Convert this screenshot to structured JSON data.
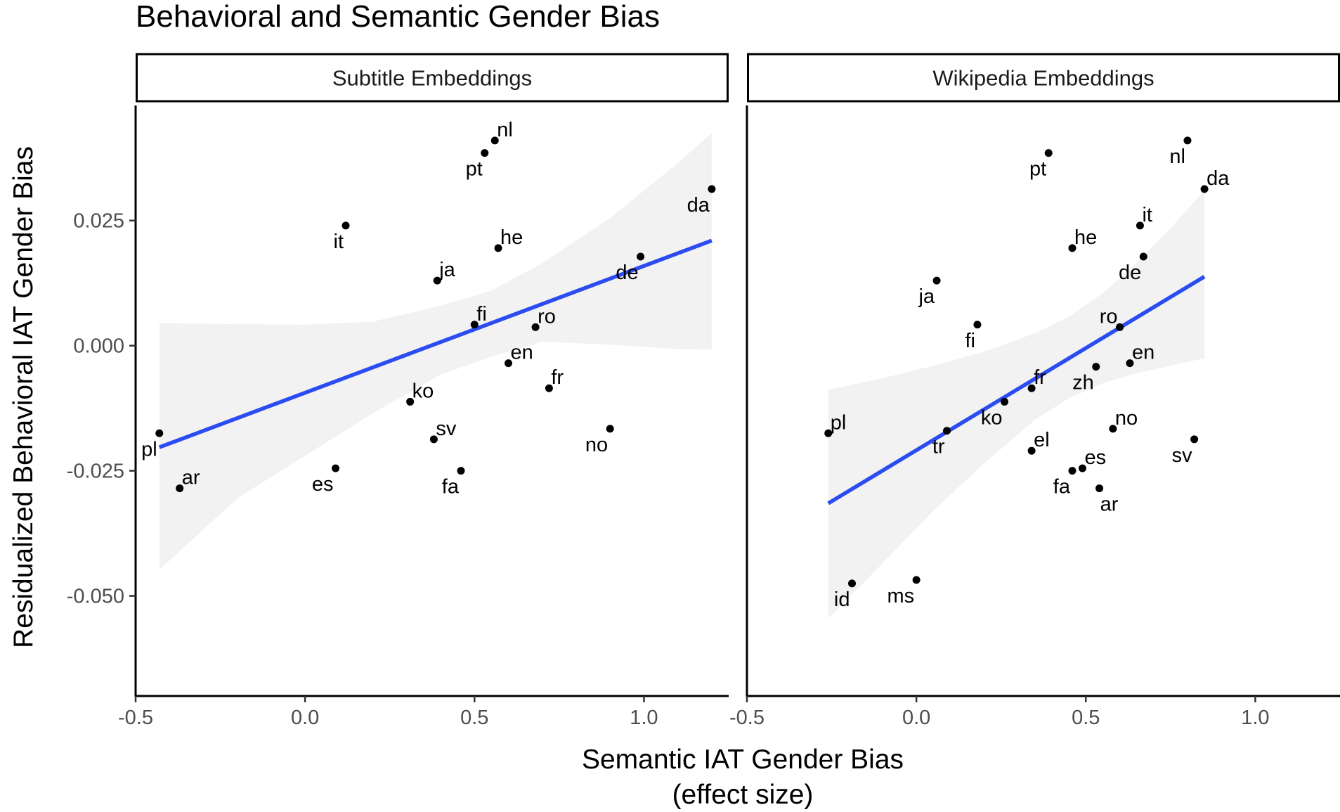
{
  "chart_data": {
    "type": "scatter",
    "title": "Behavioral and Semantic Gender Bias",
    "xlabel": [
      "Semantic IAT Gender Bias",
      "(effect size)"
    ],
    "ylabel": "Residualized Behavioral IAT Gender Bias",
    "xlim": [
      -0.5,
      1.25
    ],
    "ylim": [
      -0.07,
      0.048
    ],
    "x_ticks": [
      -0.5,
      0.0,
      0.5,
      1.0
    ],
    "x_tick_labels": [
      "-0.5",
      "0.0",
      "0.5",
      "1.0"
    ],
    "y_ticks": [
      -0.05,
      -0.025,
      0.0,
      0.025
    ],
    "y_tick_labels": [
      "-0.050",
      "-0.025",
      "0.000",
      "0.025"
    ],
    "grid": false,
    "colors": {
      "fit_line": "#2b4cf0",
      "ribbon": "#ebebeb",
      "point": "#000000"
    },
    "panels": [
      {
        "name": "Subtitle Embeddings",
        "fit": {
          "x": [
            -0.43,
            1.2
          ],
          "y": [
            -0.0203,
            0.021
          ]
        },
        "ribbon": {
          "x": [
            -0.43,
            -0.2,
            0.0,
            0.2,
            0.4,
            0.55,
            0.7,
            0.9,
            1.1,
            1.2
          ],
          "upper": [
            0.0045,
            0.0043,
            0.0042,
            0.0048,
            0.008,
            0.011,
            0.0165,
            0.0255,
            0.0365,
            0.0425
          ],
          "lower": [
            -0.0448,
            -0.0305,
            -0.022,
            -0.0135,
            -0.0058,
            -0.0022,
            0.0008,
            0.0002,
            -0.0007,
            -0.0008
          ]
        },
        "points": [
          {
            "label": "nl",
            "x": 0.56,
            "y": 0.041,
            "anchor": "ne"
          },
          {
            "label": "pt",
            "x": 0.53,
            "y": 0.0385,
            "anchor": "sw"
          },
          {
            "label": "da",
            "x": 1.2,
            "y": 0.0313,
            "anchor": "sw"
          },
          {
            "label": "it",
            "x": 0.12,
            "y": 0.024,
            "anchor": "sw"
          },
          {
            "label": "he",
            "x": 0.57,
            "y": 0.0195,
            "anchor": "ne"
          },
          {
            "label": "de",
            "x": 0.99,
            "y": 0.0178,
            "anchor": "sw"
          },
          {
            "label": "ja",
            "x": 0.39,
            "y": 0.013,
            "anchor": "ne"
          },
          {
            "label": "fi",
            "x": 0.5,
            "y": 0.0042,
            "anchor": "ne"
          },
          {
            "label": "ro",
            "x": 0.68,
            "y": 0.0037,
            "anchor": "ne"
          },
          {
            "label": "en",
            "x": 0.6,
            "y": -0.0035,
            "anchor": "ne"
          },
          {
            "label": "fr",
            "x": 0.72,
            "y": -0.0085,
            "anchor": "ne"
          },
          {
            "label": "ko",
            "x": 0.31,
            "y": -0.0112,
            "anchor": "ne"
          },
          {
            "label": "no",
            "x": 0.9,
            "y": -0.0166,
            "anchor": "sw"
          },
          {
            "label": "pl",
            "x": -0.43,
            "y": -0.0175,
            "anchor": "sw"
          },
          {
            "label": "sv",
            "x": 0.38,
            "y": -0.0187,
            "anchor": "ne"
          },
          {
            "label": "es",
            "x": 0.09,
            "y": -0.0245,
            "anchor": "sw"
          },
          {
            "label": "fa",
            "x": 0.46,
            "y": -0.025,
            "anchor": "sw"
          },
          {
            "label": "ar",
            "x": -0.37,
            "y": -0.0285,
            "anchor": "ne"
          }
        ]
      },
      {
        "name": "Wikipedia Embeddings",
        "fit": {
          "x": [
            -0.26,
            0.85
          ],
          "y": [
            -0.0315,
            0.0138
          ]
        },
        "ribbon": {
          "x": [
            -0.26,
            -0.1,
            0.05,
            0.2,
            0.35,
            0.45,
            0.55,
            0.65,
            0.75,
            0.85
          ],
          "upper": [
            -0.0088,
            -0.0065,
            -0.004,
            -0.0012,
            0.0025,
            0.0058,
            0.0105,
            0.0165,
            0.0235,
            0.031
          ],
          "lower": [
            -0.0545,
            -0.0435,
            -0.033,
            -0.0235,
            -0.0148,
            -0.0105,
            -0.0075,
            -0.0055,
            -0.004,
            -0.0025
          ]
        },
        "points": [
          {
            "label": "nl",
            "x": 0.8,
            "y": 0.041,
            "anchor": "sw"
          },
          {
            "label": "pt",
            "x": 0.39,
            "y": 0.0385,
            "anchor": "sw"
          },
          {
            "label": "da",
            "x": 0.85,
            "y": 0.0313,
            "anchor": "ne"
          },
          {
            "label": "it",
            "x": 0.66,
            "y": 0.024,
            "anchor": "ne"
          },
          {
            "label": "he",
            "x": 0.46,
            "y": 0.0195,
            "anchor": "ne"
          },
          {
            "label": "de",
            "x": 0.67,
            "y": 0.0178,
            "anchor": "sw"
          },
          {
            "label": "ja",
            "x": 0.06,
            "y": 0.013,
            "anchor": "sw"
          },
          {
            "label": "fi",
            "x": 0.18,
            "y": 0.0042,
            "anchor": "sw"
          },
          {
            "label": "ro",
            "x": 0.6,
            "y": 0.0037,
            "anchor": "nw"
          },
          {
            "label": "en",
            "x": 0.63,
            "y": -0.0035,
            "anchor": "ne"
          },
          {
            "label": "zh",
            "x": 0.53,
            "y": -0.0042,
            "anchor": "sw"
          },
          {
            "label": "fr",
            "x": 0.34,
            "y": -0.0085,
            "anchor": "ne"
          },
          {
            "label": "ko",
            "x": 0.26,
            "y": -0.0112,
            "anchor": "sw"
          },
          {
            "label": "no",
            "x": 0.58,
            "y": -0.0166,
            "anchor": "ne"
          },
          {
            "label": "pl",
            "x": -0.26,
            "y": -0.0175,
            "anchor": "ne"
          },
          {
            "label": "tr",
            "x": 0.09,
            "y": -0.017,
            "anchor": "sw"
          },
          {
            "label": "sv",
            "x": 0.82,
            "y": -0.0187,
            "anchor": "sw"
          },
          {
            "label": "el",
            "x": 0.34,
            "y": -0.021,
            "anchor": "ne"
          },
          {
            "label": "es",
            "x": 0.49,
            "y": -0.0245,
            "anchor": "ne"
          },
          {
            "label": "fa",
            "x": 0.46,
            "y": -0.025,
            "anchor": "sw"
          },
          {
            "label": "ar",
            "x": 0.54,
            "y": -0.0285,
            "anchor": "se"
          },
          {
            "label": "id",
            "x": -0.19,
            "y": -0.0475,
            "anchor": "sw"
          },
          {
            "label": "ms",
            "x": 0.0,
            "y": -0.0468,
            "anchor": "sw"
          }
        ]
      }
    ]
  }
}
